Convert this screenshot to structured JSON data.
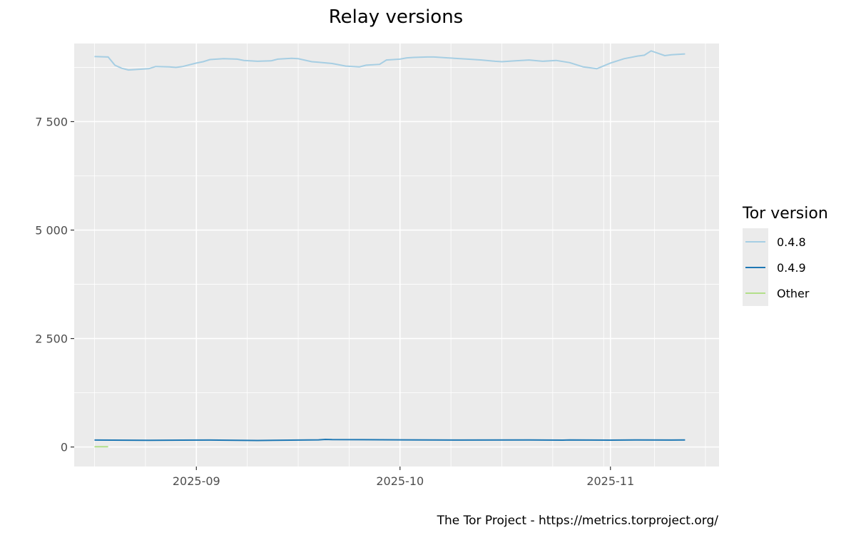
{
  "chart_data": {
    "type": "line",
    "title": "Relay versions",
    "xlabel": "",
    "ylabel": "",
    "x_tick_labels": [
      "2025-09",
      "2025-10",
      "2025-11"
    ],
    "y_tick_labels": [
      "0",
      "2 500",
      "5 000",
      "7 500"
    ],
    "y_ticks": [
      0,
      2500,
      5000,
      7500
    ],
    "ylim": [
      -450,
      9300
    ],
    "xlim": [
      "2025-08-14",
      "2025-11-17"
    ],
    "grid": true,
    "legend": {
      "title": "Tor version",
      "position": "right"
    },
    "series": [
      {
        "name": "0.4.8",
        "color": "#a6cee3",
        "x": [
          "2025-08-17",
          "2025-08-19",
          "2025-08-20",
          "2025-08-21",
          "2025-08-22",
          "2025-08-23",
          "2025-08-25",
          "2025-08-26",
          "2025-08-28",
          "2025-08-29",
          "2025-08-30",
          "2025-09-01",
          "2025-09-02",
          "2025-09-03",
          "2025-09-05",
          "2025-09-07",
          "2025-09-08",
          "2025-09-10",
          "2025-09-12",
          "2025-09-13",
          "2025-09-15",
          "2025-09-16",
          "2025-09-18",
          "2025-09-19",
          "2025-09-21",
          "2025-09-23",
          "2025-09-25",
          "2025-09-26",
          "2025-09-28",
          "2025-09-29",
          "2025-10-01",
          "2025-10-02",
          "2025-10-03",
          "2025-10-05",
          "2025-10-06",
          "2025-10-08",
          "2025-10-09",
          "2025-10-11",
          "2025-10-13",
          "2025-10-15",
          "2025-10-16",
          "2025-10-18",
          "2025-10-20",
          "2025-10-22",
          "2025-10-24",
          "2025-10-26",
          "2025-10-28",
          "2025-10-30",
          "2025-11-01",
          "2025-11-03",
          "2025-11-05",
          "2025-11-06",
          "2025-11-07",
          "2025-11-09",
          "2025-11-10",
          "2025-11-12"
        ],
        "values": [
          9000,
          8990,
          8800,
          8730,
          8690,
          8700,
          8720,
          8770,
          8760,
          8750,
          8770,
          8850,
          8880,
          8930,
          8950,
          8940,
          8910,
          8890,
          8900,
          8940,
          8960,
          8950,
          8880,
          8870,
          8840,
          8780,
          8760,
          8800,
          8820,
          8920,
          8940,
          8970,
          8980,
          8990,
          8990,
          8970,
          8960,
          8940,
          8920,
          8890,
          8880,
          8900,
          8920,
          8890,
          8910,
          8860,
          8760,
          8720,
          8850,
          8950,
          9010,
          9030,
          9130,
          9020,
          9040,
          9060
        ]
      },
      {
        "name": "0.4.9",
        "color": "#1f78b4",
        "x": [
          "2025-08-17",
          "2025-08-25",
          "2025-09-03",
          "2025-09-10",
          "2025-09-19",
          "2025-09-20",
          "2025-09-21",
          "2025-10-01",
          "2025-10-10",
          "2025-10-20",
          "2025-10-25",
          "2025-10-26",
          "2025-11-01",
          "2025-11-05",
          "2025-11-10",
          "2025-11-12"
        ],
        "values": [
          160,
          155,
          160,
          150,
          165,
          175,
          170,
          165,
          160,
          163,
          158,
          162,
          158,
          163,
          160,
          162
        ]
      },
      {
        "name": "Other",
        "color": "#b2df8a",
        "x": [
          "2025-08-17",
          "2025-08-19"
        ],
        "values": [
          5,
          5
        ]
      }
    ],
    "caption": "The Tor Project - https://metrics.torproject.org/"
  }
}
